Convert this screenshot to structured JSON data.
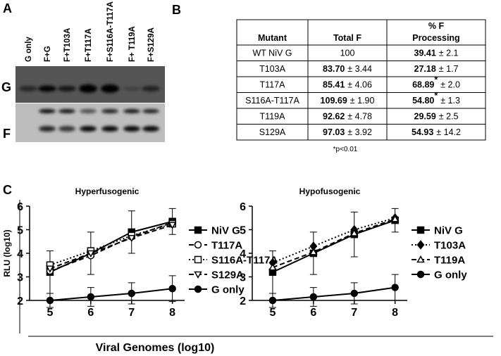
{
  "panel_a": {
    "label": "A",
    "lanes": [
      "G only",
      "F+G",
      "F+T103A",
      "F+T117A",
      "F+S116A-T117A",
      "F+ T119A",
      "F+S129A"
    ],
    "rows": [
      "G",
      "F"
    ]
  },
  "panel_b": {
    "label": "B",
    "header": {
      "mutant": "Mutant",
      "total": "Total F",
      "processing": [
        "% F",
        "Processing"
      ]
    },
    "rows": [
      {
        "mutant": "WT NiV G",
        "total": {
          "text": "100"
        },
        "processing": {
          "bold": "39.41",
          "rest": "± 2.1"
        }
      },
      {
        "mutant": "T103A",
        "total": {
          "bold": "83.70",
          "rest": "± 3.44"
        },
        "processing": {
          "bold": "27.18",
          "rest": "± 1.7"
        }
      },
      {
        "mutant": "T117A",
        "total": {
          "bold": "85.41",
          "rest": "± 4.06"
        },
        "processing": {
          "bold": "68.89",
          "sup": "*",
          "rest": "± 2.0"
        }
      },
      {
        "mutant": "S116A-T117A",
        "total": {
          "bold": "109.69",
          "rest": "± 1.90"
        },
        "processing": {
          "bold": "54.80",
          "sup": "*",
          "rest": "± 1.3"
        }
      },
      {
        "mutant": "T119A",
        "total": {
          "bold": "92.62",
          "rest": "± 4.78"
        },
        "processing": {
          "bold": "29.59",
          "rest": "± 2.5"
        }
      },
      {
        "mutant": "S129A",
        "total": {
          "bold": "97.03",
          "rest": "± 3.92"
        },
        "processing": {
          "bold": "54.93",
          "rest": "± 14.2"
        }
      }
    ],
    "footnote": "*p<0.01"
  },
  "panel_c": {
    "label": "C",
    "x_label": "Viral Genomes (log10)"
  },
  "chart_data": [
    {
      "type": "line",
      "title": "Hyperfusogenic",
      "y_label": "RLU (log10)",
      "x": [
        5,
        6,
        7,
        8
      ],
      "xlim": [
        4.5,
        8.3
      ],
      "xticks": [
        5,
        6,
        7,
        8
      ],
      "ylim": [
        2,
        6
      ],
      "yticks": [
        2,
        3,
        4,
        5,
        6
      ],
      "legend": "outside-right",
      "series": [
        {
          "name": "NiV G",
          "color": "#000000",
          "marker": "square-filled",
          "dash": "solid",
          "values": [
            3.2,
            4.0,
            4.9,
            5.35
          ],
          "errors": [
            0.9,
            0.9,
            0.9,
            0.55
          ]
        },
        {
          "name": "T117A",
          "color": "#000000",
          "marker": "circle-open",
          "dash": "dashed",
          "values": [
            3.25,
            3.9,
            4.7,
            5.3
          ]
        },
        {
          "name": "S116A-T117A",
          "color": "#000000",
          "marker": "square-open",
          "dash": "dotted",
          "values": [
            3.5,
            4.1,
            4.75,
            5.25
          ]
        },
        {
          "name": "S129A",
          "color": "#000000",
          "marker": "triangle-down-open",
          "dash": "dashed",
          "values": [
            3.35,
            4.0,
            4.65,
            5.2
          ]
        },
        {
          "name": "G only",
          "color": "#000000",
          "marker": "circle-filled",
          "dash": "solid",
          "values": [
            2.0,
            2.15,
            2.3,
            2.5
          ],
          "errors": [
            0.3,
            0.4,
            0.45,
            0.55
          ]
        }
      ]
    },
    {
      "type": "line",
      "title": "Hypofusogenic",
      "x": [
        5,
        6,
        7,
        8
      ],
      "xlim": [
        4.5,
        8.3
      ],
      "xticks": [
        5,
        6,
        7,
        8
      ],
      "ylim": [
        2,
        6
      ],
      "yticks": [
        2,
        3,
        4,
        5,
        6
      ],
      "legend": "outside-right",
      "series": [
        {
          "name": "NiV G",
          "color": "#000000",
          "marker": "square-filled",
          "dash": "solid",
          "values": [
            3.2,
            4.0,
            4.8,
            5.4
          ],
          "errors": [
            0.9,
            0.9,
            0.95,
            0.5
          ]
        },
        {
          "name": "T103A",
          "color": "#000000",
          "marker": "diamond-filled",
          "dash": "dotted",
          "values": [
            3.6,
            4.3,
            5.0,
            5.5
          ]
        },
        {
          "name": "T119A",
          "color": "#000000",
          "marker": "triangle-up-open",
          "dash": "dashed",
          "values": [
            3.4,
            4.05,
            4.85,
            5.45
          ]
        },
        {
          "name": "G only",
          "color": "#000000",
          "marker": "circle-filled",
          "dash": "solid",
          "values": [
            2.0,
            2.15,
            2.3,
            2.55
          ],
          "errors": [
            0.3,
            0.4,
            0.45,
            0.55
          ]
        }
      ]
    }
  ]
}
